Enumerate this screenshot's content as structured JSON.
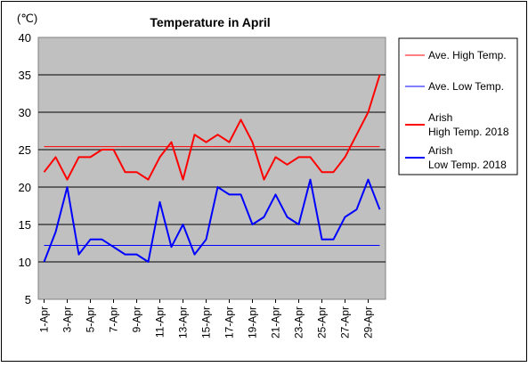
{
  "chart_data": {
    "type": "line",
    "title": "Temperature in April",
    "unit_label": "(℃)",
    "ylim": [
      5,
      40
    ],
    "yticks": [
      5,
      10,
      15,
      20,
      25,
      30,
      35,
      40
    ],
    "grid": true,
    "legend_position": "right",
    "x_tick_labels": [
      "1-Apr",
      "3-Apr",
      "5-Apr",
      "7-Apr",
      "9-Apr",
      "11-Apr",
      "13-Apr",
      "15-Apr",
      "17-Apr",
      "19-Apr",
      "21-Apr",
      "23-Apr",
      "25-Apr",
      "27-Apr",
      "29-Apr"
    ],
    "x_tick_days": [
      1,
      3,
      5,
      7,
      9,
      11,
      13,
      15,
      17,
      19,
      21,
      23,
      25,
      27,
      29
    ],
    "days": [
      1,
      2,
      3,
      4,
      5,
      6,
      7,
      8,
      9,
      10,
      11,
      12,
      13,
      14,
      15,
      16,
      17,
      18,
      19,
      20,
      21,
      22,
      23,
      24,
      25,
      26,
      27,
      28,
      29,
      30
    ],
    "series": [
      {
        "name": "Ave. High Temp.",
        "color": "#ff0000",
        "style": "thin",
        "values": [
          25.4,
          25.4,
          25.4,
          25.4,
          25.4,
          25.4,
          25.4,
          25.4,
          25.4,
          25.4,
          25.4,
          25.4,
          25.4,
          25.4,
          25.4,
          25.4,
          25.4,
          25.4,
          25.4,
          25.4,
          25.4,
          25.4,
          25.4,
          25.4,
          25.4,
          25.4,
          25.4,
          25.4,
          25.4,
          25.4
        ]
      },
      {
        "name": "Ave. Low Temp.",
        "color": "#0000ff",
        "style": "thin",
        "values": [
          12.2,
          12.2,
          12.2,
          12.2,
          12.2,
          12.2,
          12.2,
          12.2,
          12.2,
          12.2,
          12.2,
          12.2,
          12.2,
          12.2,
          12.2,
          12.2,
          12.2,
          12.2,
          12.2,
          12.2,
          12.2,
          12.2,
          12.2,
          12.2,
          12.2,
          12.2,
          12.2,
          12.2,
          12.2,
          12.2
        ]
      },
      {
        "name": "Arish\nHigh Temp. 2018",
        "color": "#ff0000",
        "style": "thick",
        "values": [
          22,
          24,
          21,
          24,
          24,
          25,
          25,
          22,
          22,
          21,
          24,
          26,
          21,
          27,
          26,
          27,
          26,
          29,
          26,
          21,
          24,
          23,
          24,
          24,
          22,
          22,
          24,
          27,
          30,
          35
        ]
      },
      {
        "name": "Arish\nLow Temp. 2018",
        "color": "#0000ff",
        "style": "thick",
        "values": [
          10,
          14,
          20,
          11,
          13,
          13,
          12,
          11,
          11,
          10,
          18,
          12,
          15,
          11,
          13,
          20,
          19,
          19,
          15,
          16,
          19,
          16,
          15,
          21,
          13,
          13,
          16,
          17,
          21,
          17
        ]
      }
    ]
  }
}
